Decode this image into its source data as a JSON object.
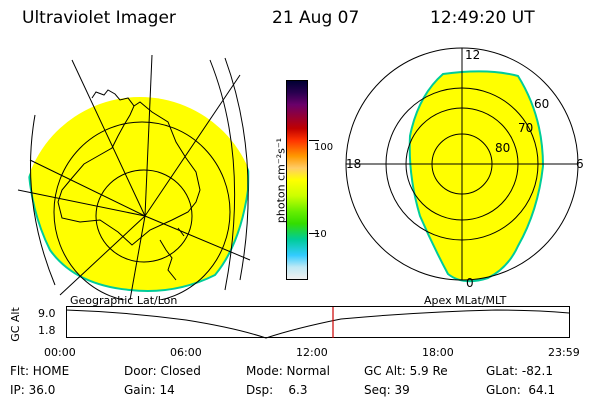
{
  "header": {
    "instrument": "Ultraviolet Imager",
    "date": "21 Aug 07",
    "time": "12:49:20 UT"
  },
  "colorbar": {
    "unit_label": "photon cm⁻²s⁻¹",
    "ticks": [
      "100",
      "10"
    ],
    "scale": "log",
    "colors": [
      "#000033",
      "#6a006a",
      "#c00000",
      "#ff3300",
      "#ff9900",
      "#ffcc66",
      "#ffff00",
      "#ccff00",
      "#33dd00",
      "#00cc99",
      "#33ccff",
      "#e0e0e0"
    ]
  },
  "geo_map": {
    "label": "Geographic Lat/Lon",
    "fill_color": "#ffff00",
    "edge_color": "#00cc99"
  },
  "polar_map": {
    "label": "Apex MLat/MLT",
    "mlt_labels": {
      "top": "12",
      "left": "18",
      "right": "6",
      "bottom": "0"
    },
    "lat_labels": [
      "60",
      "70",
      "80"
    ],
    "fill_color": "#ffff00"
  },
  "altitude_plot": {
    "ylabel": "GC Alt",
    "yticks": [
      "9.0",
      "1.8"
    ],
    "xticks": [
      "00:00",
      "06:00",
      "12:00",
      "18:00",
      "23:59"
    ],
    "current_time_color": "#cc0000"
  },
  "info": {
    "flt": "Flt: HOME",
    "door": "Door: Closed",
    "mode": "Mode: Normal",
    "gc_alt": "GC Alt: 5.9 Re",
    "glat": "GLat: -82.1",
    "ip": "IP: 36.0",
    "gain": "Gain: 14",
    "dsp": "Dsp:    6.3",
    "seq": "Seq: 39",
    "glon": "GLon:  64.1"
  }
}
